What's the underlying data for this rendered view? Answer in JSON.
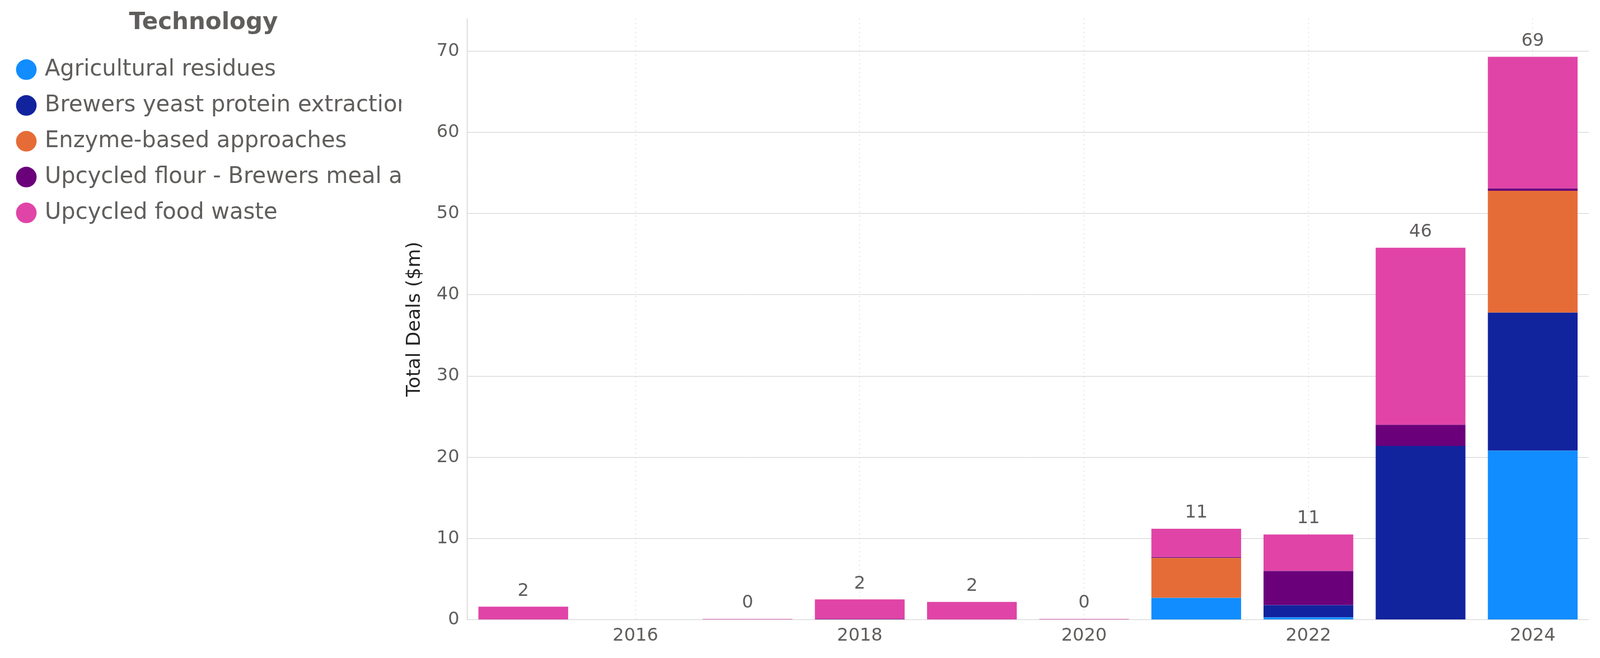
{
  "chart_data": {
    "type": "bar",
    "y_label": "Total Deals ($m)",
    "legend_title": "Technology",
    "categories": [
      null,
      "2016",
      null,
      "2018",
      null,
      "2020",
      null,
      "2022",
      null,
      "2024"
    ],
    "series": [
      {
        "name": "Agricultural residues",
        "color": "#118dff",
        "values": [
          0,
          0,
          0,
          0,
          0,
          0,
          2.7,
          0.3,
          0,
          20.8
        ]
      },
      {
        "name": "Brewers yeast protein extraction",
        "color": "#12239e",
        "values": [
          0,
          0,
          0,
          0,
          0,
          0,
          0,
          1.5,
          21.4,
          17.0
        ]
      },
      {
        "name": "Enzyme-based approaches",
        "color": "#e66c37",
        "values": [
          0,
          0,
          0,
          0,
          0,
          0,
          4.9,
          0,
          0,
          15.0
        ]
      },
      {
        "name": "Upcycled flour - Brewers meal and/ o…",
        "color": "#6b007b",
        "values": [
          0,
          0,
          0,
          0.1,
          0,
          0,
          0.1,
          4.2,
          2.6,
          0.3
        ]
      },
      {
        "name": "Upcycled food waste",
        "color": "#e044a7",
        "values": [
          1.6,
          0,
          0.1,
          2.4,
          2.2,
          0.1,
          3.5,
          4.5,
          21.8,
          16.2
        ]
      }
    ],
    "totals": [
      1.6,
      null,
      0.1,
      2.5,
      2.2,
      0.1,
      11.2,
      10.5,
      45.8,
      69.3
    ],
    "total_labels": [
      "2",
      null,
      "0",
      "2",
      "2",
      "0",
      "11",
      "11",
      "46",
      "69"
    ],
    "ylim": [
      0,
      74
    ],
    "yticks": [
      0,
      10,
      20,
      30,
      40,
      50,
      60,
      70
    ],
    "stacked": true,
    "grid": true,
    "legend": "left"
  }
}
